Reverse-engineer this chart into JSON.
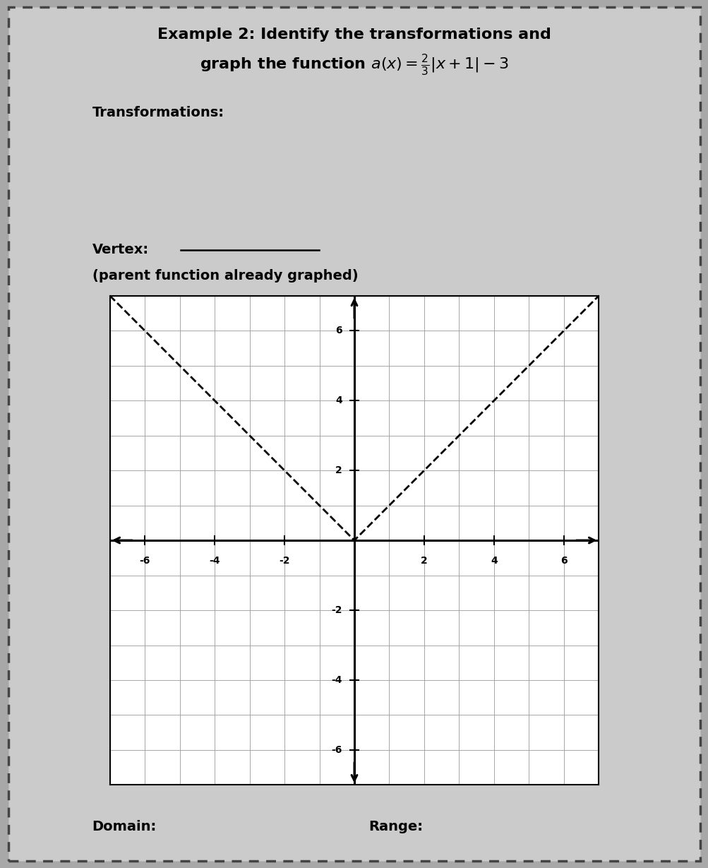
{
  "title_line1": "Example 2: Identify the transformations and",
  "title_line2_math": "graph the function $a(x) = \\frac{2}{3}|x + 1| - 3$",
  "transformations_label": "Transformations:",
  "vertex_label": "Vertex:",
  "parent_label": "(parent function already graphed)",
  "domain_label": "Domain:",
  "range_label": "Range:",
  "tick_positions": [
    -6,
    -4,
    -2,
    2,
    4,
    6
  ],
  "axis_extent": 7,
  "graph_facecolor": "#ffffff",
  "page_facecolor": "#cbcbcb",
  "fig_facecolor": "#a8a8a8",
  "border_color": "#444444",
  "grid_color": "#999999",
  "axis_color": "#000000",
  "line_color": "#000000",
  "figsize": [
    10.04,
    12.29
  ],
  "dpi": 100,
  "title_fontsize": 16,
  "label_fontsize": 14,
  "tick_fontsize": 10,
  "parent_linewidth": 2.0,
  "axis_linewidth": 2.2,
  "grid_linewidth": 0.6,
  "border_linewidth": 2.5
}
